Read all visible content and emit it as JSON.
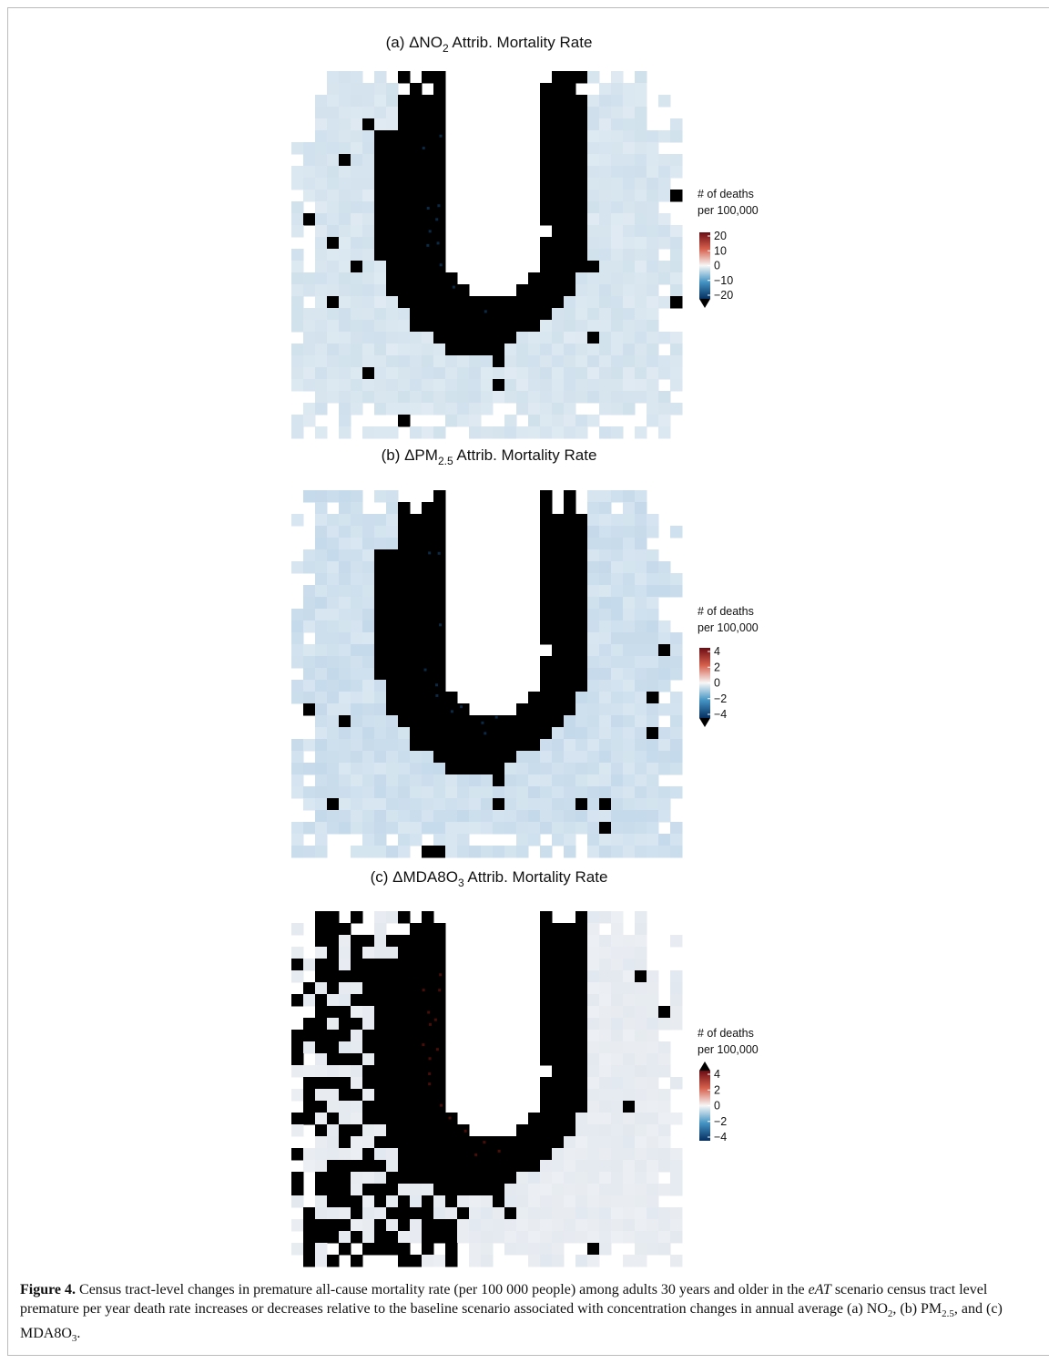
{
  "panels": [
    {
      "title": {
        "prefix": "(a) ΔNO",
        "subscript": "2",
        "suffix": " Attrib. Mortality Rate"
      },
      "legend": {
        "title": [
          "# of deaths",
          "per 100,000"
        ],
        "ticks": [
          "20",
          "10",
          "0",
          "−10",
          "−20"
        ]
      }
    },
    {
      "title": {
        "prefix": "(b) ΔPM",
        "subscript": "2.5",
        "suffix": " Attrib. Mortality Rate"
      },
      "legend": {
        "title": [
          "# of deaths",
          "per 100,000"
        ],
        "ticks": [
          "4",
          "2",
          "0",
          "−2",
          "−4"
        ]
      }
    },
    {
      "title": {
        "prefix": "(c) ΔMDA8O",
        "subscript": "3",
        "suffix": " Attrib. Mortality Rate"
      },
      "legend": {
        "title": [
          "# of deaths",
          "per 100,000"
        ],
        "ticks": [
          "4",
          "2",
          "0",
          "−2",
          "−4"
        ]
      }
    }
  ],
  "caption": {
    "label": "Figure 4.",
    "parts": [
      " Census tract-level changes in premature all-cause mortality rate (per 100 000 people) among adults 30 years and older in the ",
      "eAT",
      " scenario census tract level premature per year death rate increases or decreases relative to the baseline scenario associated with concentration changes in annual average (a) NO",
      "2",
      ", (b) PM",
      "2.5",
      ", and (c) MDA8O",
      "3",
      "."
    ]
  }
}
